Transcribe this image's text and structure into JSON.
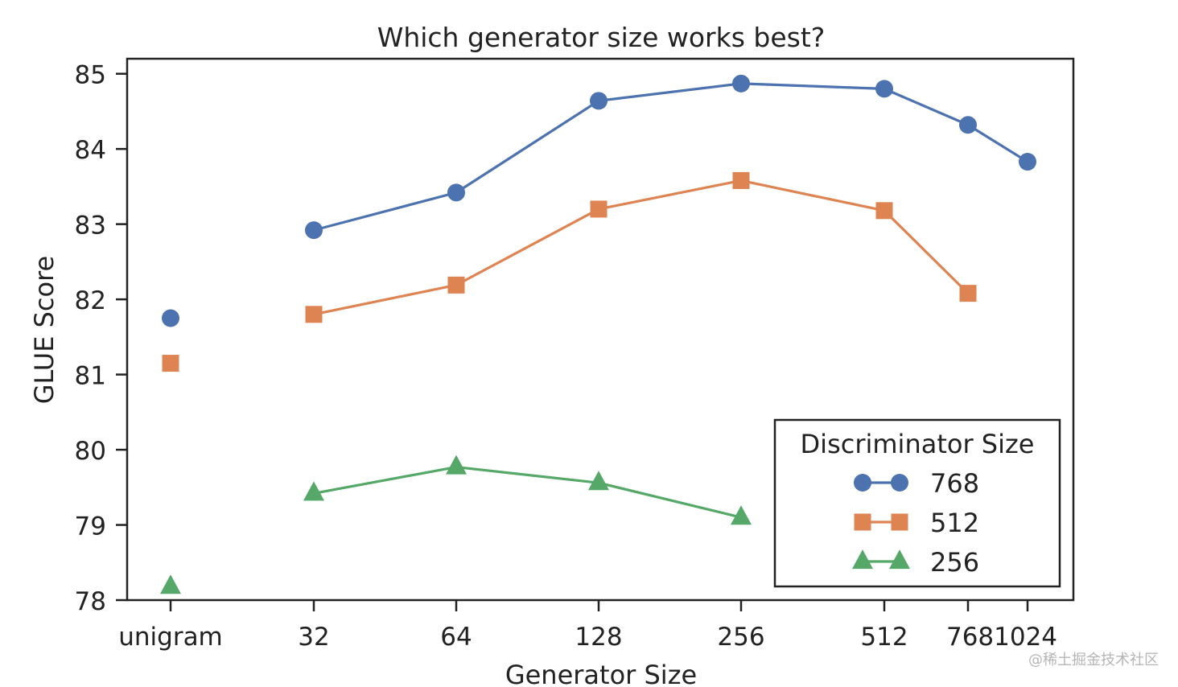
{
  "chart_data": {
    "type": "line",
    "title": "Which generator size works best?",
    "xlabel": "Generator Size",
    "ylabel": "GLUE Score",
    "categories": [
      "unigram",
      "32",
      "64",
      "128",
      "256",
      "512",
      "768",
      "1024"
    ],
    "x_tick_labels": [
      "unigram",
      "32",
      "64",
      "128",
      "256",
      "512",
      "7681024"
    ],
    "ylim": [
      78,
      85.2
    ],
    "y_ticks": [
      78,
      79,
      80,
      81,
      82,
      83,
      84,
      85
    ],
    "grid": false,
    "legend": {
      "title": "Discriminator Size",
      "position": "lower-right"
    },
    "series": [
      {
        "name": "768",
        "marker": "circle",
        "color": "#4c72b0",
        "values": [
          81.75,
          82.92,
          83.42,
          84.64,
          84.87,
          84.8,
          84.32,
          83.83
        ],
        "connected_from_index": 1
      },
      {
        "name": "512",
        "marker": "square",
        "color": "#dd8452",
        "values": [
          81.15,
          81.8,
          82.19,
          83.2,
          83.58,
          83.18,
          82.08,
          null
        ],
        "connected_from_index": 1
      },
      {
        "name": "256",
        "marker": "triangle",
        "color": "#55a868",
        "values": [
          78.18,
          79.42,
          79.77,
          79.56,
          79.1,
          null,
          null,
          null
        ],
        "connected_from_index": 1
      }
    ]
  },
  "watermark": "@稀土掘金技术社区"
}
